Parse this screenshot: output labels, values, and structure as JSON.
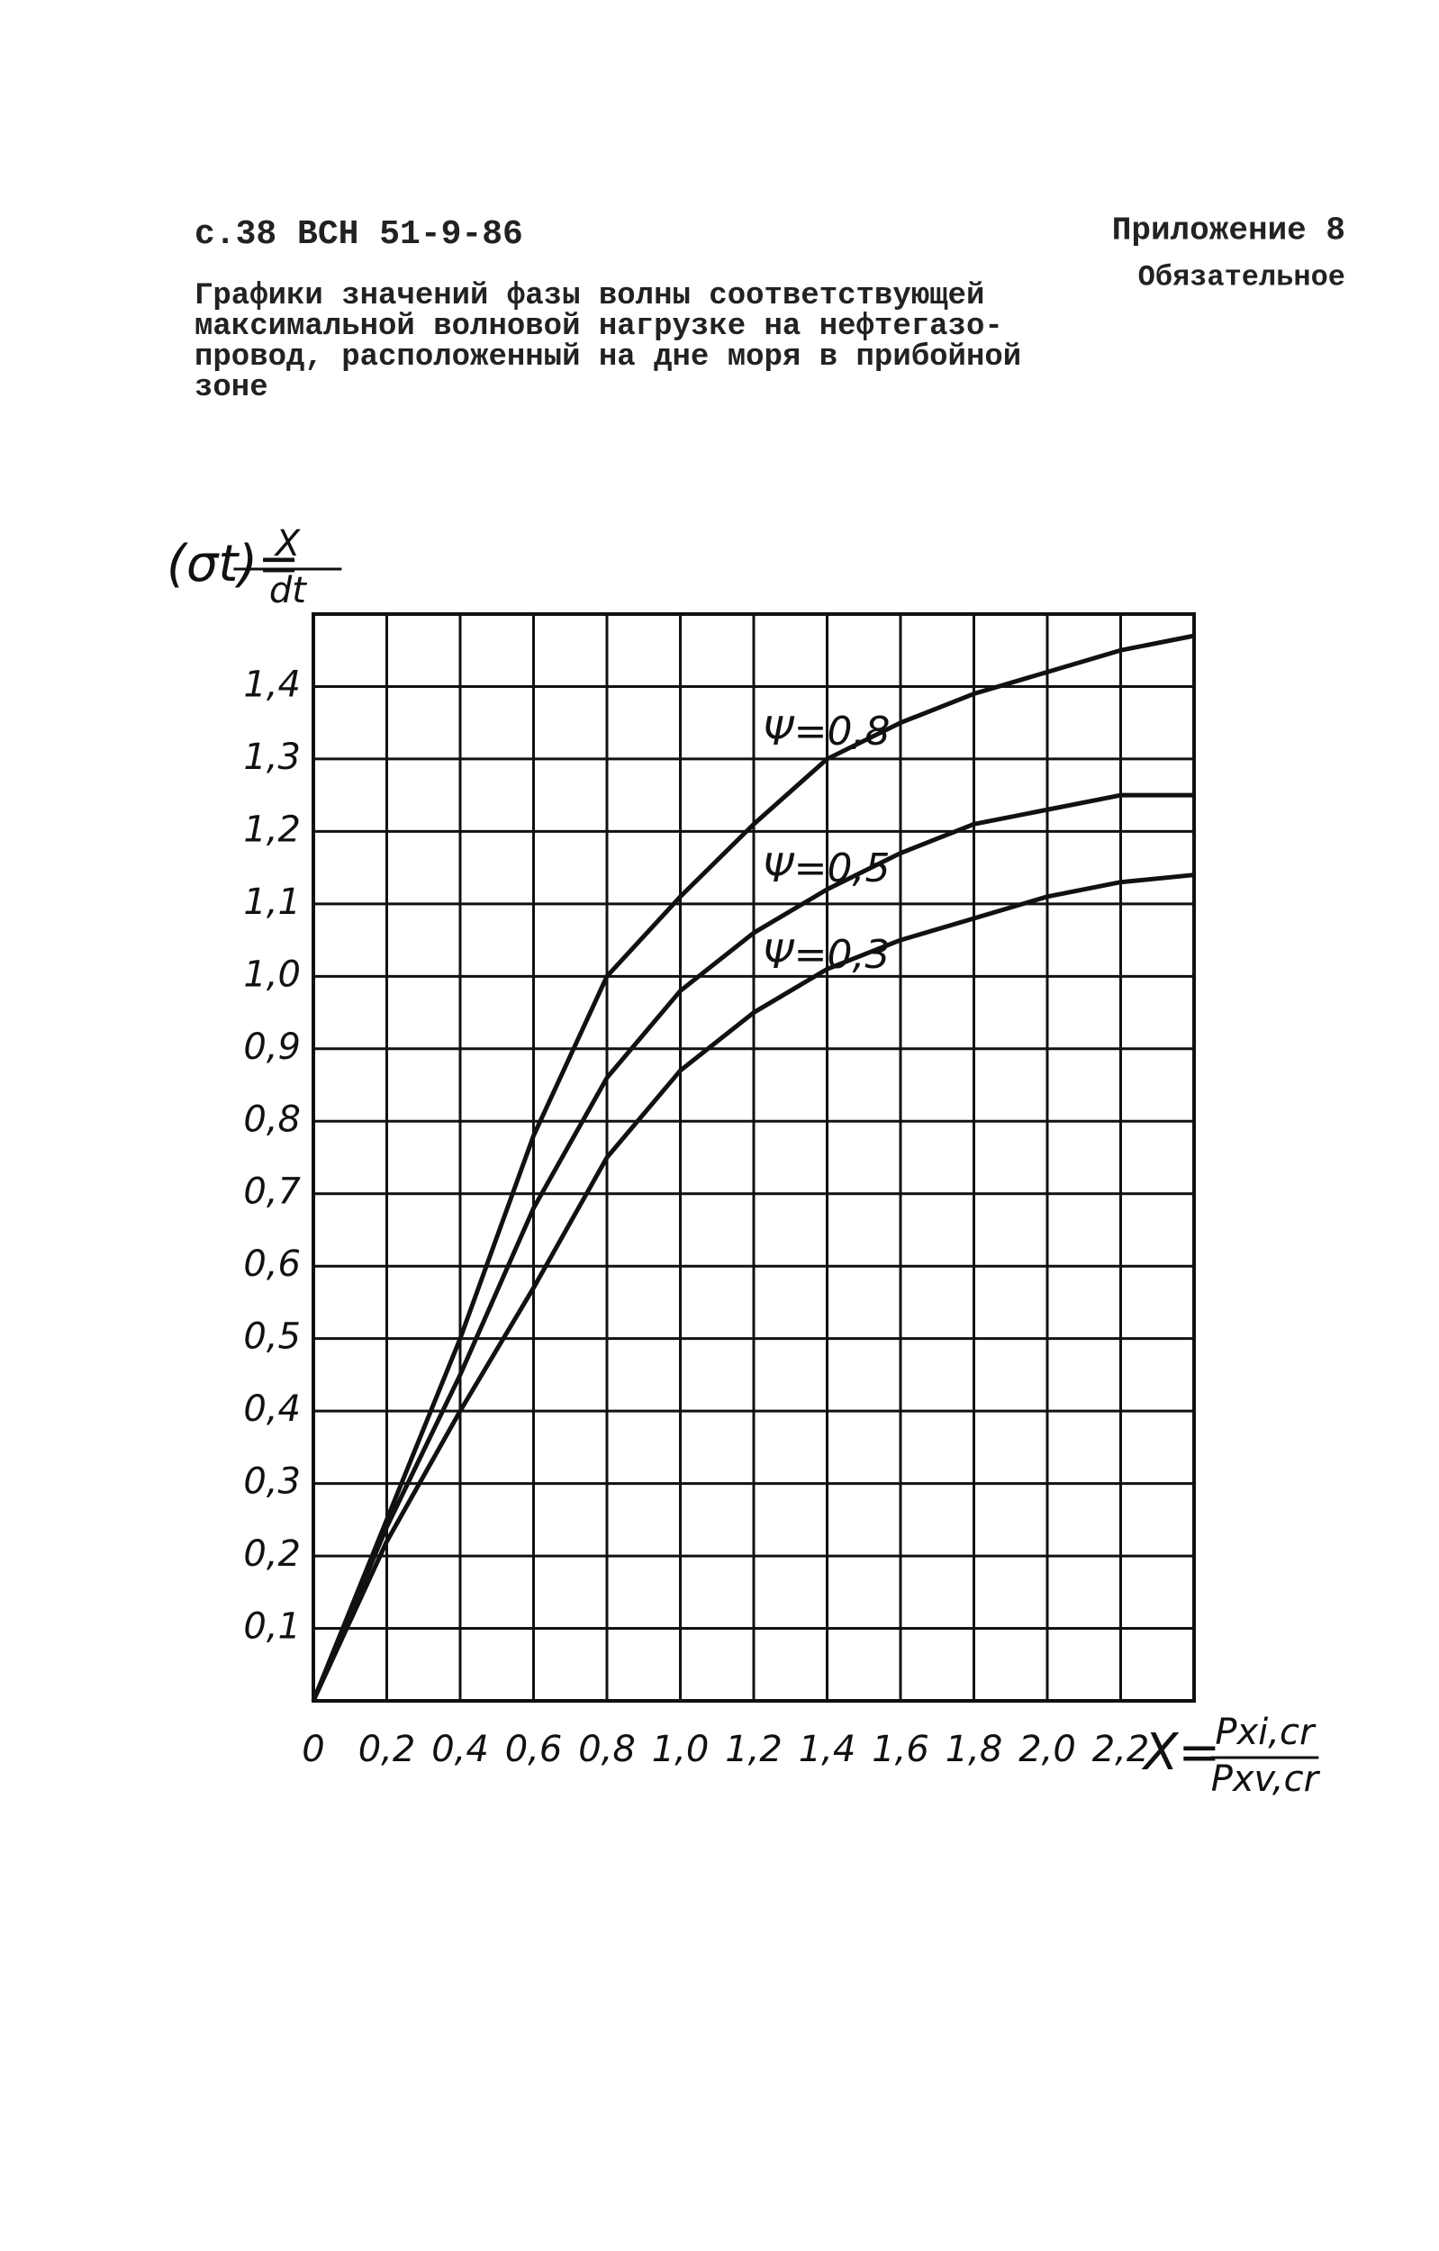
{
  "header": {
    "page_ref": "с.38 ВСН 51-9-86",
    "appendix": "Приложение 8",
    "status": "Обязательное",
    "title_lines": [
      "Графики значений фазы волны соответствующей",
      "максимальной волновой нагрузке на нефтегазо-",
      "провод, расположенный на дне моря в прибойной",
      "зоне"
    ]
  },
  "chart_data": {
    "type": "line",
    "y_label": {
      "left": "(σt)=",
      "num": "X",
      "den": "dt"
    },
    "x_label": {
      "left": "X=",
      "num": "Pxi,cr",
      "den": "Pxv,cr"
    },
    "x": [
      0,
      0.2,
      0.4,
      0.6,
      0.8,
      1.0,
      1.2,
      1.4,
      1.6,
      1.8,
      2.0,
      2.2,
      2.4
    ],
    "series": [
      {
        "name": "Ψ=0,8",
        "color": "#111111",
        "values": [
          0,
          0.25,
          0.5,
          0.78,
          1.0,
          1.11,
          1.21,
          1.3,
          1.35,
          1.39,
          1.42,
          1.45,
          1.47
        ]
      },
      {
        "name": "Ψ=0,5",
        "color": "#111111",
        "values": [
          0,
          0.24,
          0.45,
          0.68,
          0.86,
          0.98,
          1.06,
          1.12,
          1.17,
          1.21,
          1.23,
          1.25,
          1.25
        ]
      },
      {
        "name": "Ψ=0,3",
        "color": "#111111",
        "values": [
          0,
          0.22,
          0.4,
          0.57,
          0.75,
          0.87,
          0.95,
          1.01,
          1.05,
          1.08,
          1.11,
          1.13,
          1.14
        ]
      }
    ],
    "xlim": [
      0,
      2.4
    ],
    "ylim": [
      0,
      1.5
    ],
    "xticks": [
      0,
      {
        "value": 0.2,
        "label": "0,2"
      },
      {
        "value": 0.4,
        "label": "0,4"
      },
      {
        "value": 0.6,
        "label": "0,6"
      },
      {
        "value": 0.8,
        "label": "0,8"
      },
      {
        "value": 1.0,
        "label": "1,0"
      },
      {
        "value": 1.2,
        "label": "1,2"
      },
      {
        "value": 1.4,
        "label": "1,4"
      },
      {
        "value": 1.6,
        "label": "1,6"
      },
      {
        "value": 1.8,
        "label": "1,8"
      },
      {
        "value": 2.0,
        "label": "2,0"
      },
      {
        "value": 2.2,
        "label": "2,2"
      }
    ],
    "yticks": [
      {
        "value": 0.1,
        "label": "0,1"
      },
      {
        "value": 0.2,
        "label": "0,2"
      },
      {
        "value": 0.3,
        "label": "0,3"
      },
      {
        "value": 0.4,
        "label": "0,4"
      },
      {
        "value": 0.5,
        "label": "0,5"
      },
      {
        "value": 0.6,
        "label": "0,6"
      },
      {
        "value": 0.7,
        "label": "0,7"
      },
      {
        "value": 0.8,
        "label": "0,8"
      },
      {
        "value": 0.9,
        "label": "0,9"
      },
      {
        "value": 1.0,
        "label": "1,0"
      },
      {
        "value": 1.1,
        "label": "1,1"
      },
      {
        "value": 1.2,
        "label": "1,2"
      },
      {
        "value": 1.3,
        "label": "1,3"
      },
      {
        "value": 1.4,
        "label": "1,4"
      }
    ],
    "grid": true
  }
}
